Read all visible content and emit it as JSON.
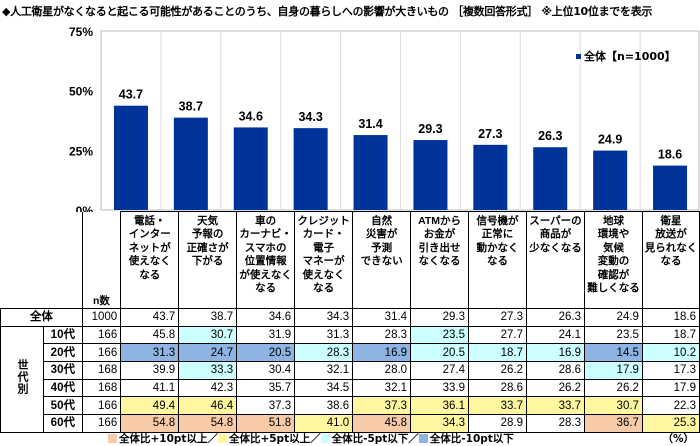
{
  "title": "◆人工衛星がなくなると起こる可能性があることのうち、自身の暮らしへの影響が大きいもの ［複数回答形式］ ※上位10位までを表示",
  "chart_data": {
    "type": "bar",
    "title": "◆人工衛星がなくなると起こる可能性があることのうち、自身の暮らしへの影響が大きいもの ［複数回答形式］ ※上位10位までを表示",
    "categories": [
      "電話・\nインター\nネットが\n使えなく\nなる",
      "天気\n予報の\n正確さが\n下がる",
      "車の\nカーナビ・\nスマホの\n位置情報\nが使えなく\nなる",
      "クレジット\nカード・\n電子\nマネーが\n使えなく\nなる",
      "自然\n災害が\n予測\nできない",
      "ATMから\nお金が\n引き出せ\nなくなる",
      "信号機が\n正常に\n動かなく\nなる",
      "スーパーの\n商品が\n少なくなる",
      "地球\n環境や\n気候\n変動の\n確認が\n難しくなる",
      "衛星\n放送が\n見られなく\nなる"
    ],
    "series": [
      {
        "name": "全体【n=1000】",
        "color": "#003399",
        "values": [
          43.7,
          38.7,
          34.6,
          34.3,
          31.4,
          29.3,
          27.3,
          26.3,
          24.9,
          18.6
        ]
      }
    ],
    "yticks": [
      "0%",
      "25%",
      "50%",
      "75%"
    ],
    "ylim": [
      0,
      75
    ],
    "grid": "vertical separators",
    "legend_position": "top-right",
    "xlabel": "",
    "ylabel": ""
  },
  "table": {
    "n_header": "n数",
    "group_label": "世代別",
    "total_row": {
      "label": "全体",
      "n": "1000",
      "values": [
        43.7,
        38.7,
        34.6,
        34.3,
        31.4,
        29.3,
        27.3,
        26.3,
        24.9,
        18.6
      ]
    },
    "rows": [
      {
        "label": "10代",
        "n": "166",
        "values": [
          45.8,
          30.7,
          31.9,
          31.3,
          28.3,
          23.5,
          27.7,
          24.1,
          23.5,
          18.7
        ]
      },
      {
        "label": "20代",
        "n": "166",
        "values": [
          31.3,
          24.7,
          20.5,
          28.3,
          16.9,
          20.5,
          18.7,
          16.9,
          14.5,
          10.2
        ]
      },
      {
        "label": "30代",
        "n": "168",
        "values": [
          39.9,
          33.3,
          30.4,
          32.1,
          28.0,
          27.4,
          26.2,
          28.6,
          17.9,
          17.3
        ]
      },
      {
        "label": "40代",
        "n": "168",
        "values": [
          41.1,
          42.3,
          35.7,
          34.5,
          32.1,
          33.9,
          28.6,
          26.2,
          26.2,
          17.9
        ]
      },
      {
        "label": "50代",
        "n": "166",
        "values": [
          49.4,
          46.4,
          37.3,
          38.6,
          37.3,
          36.1,
          33.7,
          33.7,
          30.7,
          22.3
        ]
      },
      {
        "label": "60代",
        "n": "166",
        "values": [
          54.8,
          54.8,
          51.8,
          41.0,
          45.8,
          34.3,
          28.9,
          28.3,
          36.7,
          25.3
        ]
      }
    ],
    "unit": "（%）"
  },
  "highlight_legend": [
    {
      "label": "全体比+10pt以上／",
      "color": "#f8cba8",
      "min": 10
    },
    {
      "label": "全体比+5pt以上／",
      "color": "#fff7a0",
      "min": 5
    },
    {
      "label": "全体比-5pt以下／",
      "color": "#ccffff",
      "max": -5
    },
    {
      "label": "全体比-10pt以下",
      "color": "#8db4e2",
      "max": -10
    }
  ]
}
